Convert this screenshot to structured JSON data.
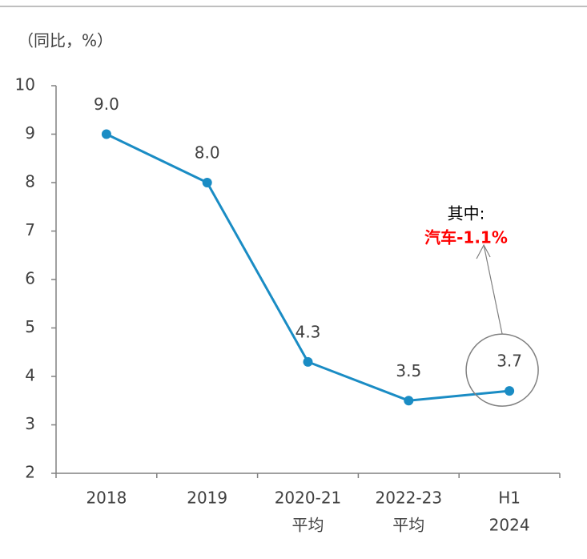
{
  "chart_data": {
    "type": "line",
    "y_label": "（同比，%）",
    "categories": [
      [
        "2018"
      ],
      [
        "2019"
      ],
      [
        "2020-21",
        "平均"
      ],
      [
        "2022-23",
        "平均"
      ],
      [
        "H1",
        "2024"
      ]
    ],
    "series": [
      {
        "color": "#1a8cc4",
        "values": [
          9.0,
          8.0,
          4.3,
          3.5,
          3.7
        ],
        "value_labels": [
          "9.0",
          "8.0",
          "4.3",
          "3.5",
          "3.7"
        ]
      }
    ],
    "ylim": [
      2,
      10
    ],
    "yticks": [
      2,
      3,
      4,
      5,
      6,
      7,
      8,
      9,
      10
    ],
    "annotations": [
      {
        "text": "其中:",
        "color": "#000000"
      },
      {
        "text": "汽车-1.1%",
        "color": "#ff0000"
      }
    ]
  }
}
